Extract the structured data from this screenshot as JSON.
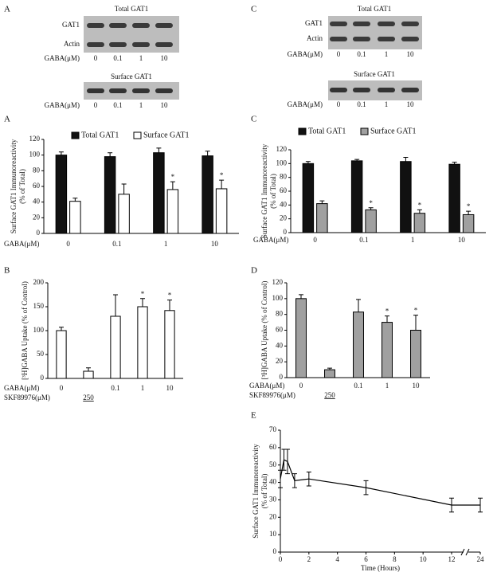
{
  "blots": [
    {
      "panel": "A",
      "total_title": "Total GAT1",
      "rows": [
        "GAT1",
        "Actin"
      ],
      "surface_title": "Surface GAT1",
      "dose_label": "GABA(μM)",
      "lanes": [
        "0",
        "0.1",
        "1",
        "10"
      ]
    },
    {
      "panel": "C",
      "total_title": "Total GAT1",
      "rows": [
        "GAT1",
        "Actin"
      ],
      "surface_title": "Surface GAT1",
      "dose_label": "GABA(μM)",
      "lanes": [
        "0",
        "0.1",
        "1",
        "10"
      ]
    }
  ],
  "chart_data": [
    {
      "type": "bar",
      "panel": "A",
      "ylabel": [
        "Surface GAT1 Immunoreactivity",
        "(% of Total)"
      ],
      "xlabel": "GABA(μM)",
      "categories": [
        "0",
        "0.1",
        "1",
        "10"
      ],
      "ylim": [
        0,
        120
      ],
      "yticks": [
        0,
        20,
        40,
        60,
        80,
        100,
        120
      ],
      "annotation": "*",
      "series": [
        {
          "name": "Total GAT1",
          "color": "#111111",
          "values": [
            100,
            98,
            103,
            99
          ],
          "errors": [
            4,
            5,
            6,
            6
          ],
          "significant": [
            false,
            false,
            false,
            false
          ]
        },
        {
          "name": "Surface GAT1",
          "color": "#ffffff",
          "values": [
            41,
            50,
            56,
            57
          ],
          "errors": [
            4,
            13,
            10,
            11
          ],
          "significant": [
            false,
            false,
            true,
            true
          ]
        }
      ]
    },
    {
      "type": "bar",
      "panel": "C",
      "ylabel": [
        "Surface GAT1 Immunoreactivity",
        "(% of Total)"
      ],
      "xlabel": "GABA(μM)",
      "categories": [
        "0",
        "0.1",
        "1",
        "10"
      ],
      "ylim": [
        0,
        120
      ],
      "yticks": [
        0,
        20,
        40,
        60,
        80,
        100,
        120
      ],
      "annotation": "*",
      "series": [
        {
          "name": "Total GAT1",
          "color": "#111111",
          "values": [
            100,
            104,
            103,
            99
          ],
          "errors": [
            3,
            2,
            6,
            3
          ],
          "significant": [
            false,
            false,
            false,
            false
          ]
        },
        {
          "name": "Surface GAT1",
          "color": "#a0a0a0",
          "values": [
            42,
            33,
            28,
            26
          ],
          "errors": [
            4,
            3,
            5,
            5
          ],
          "significant": [
            false,
            true,
            true,
            true
          ]
        }
      ]
    },
    {
      "type": "bar",
      "panel": "B",
      "ylabel": [
        "[³H]GABA Uptake (% of Control)"
      ],
      "xlabel": "GABA(μM)",
      "xlabel2": "SKF89976(μM)",
      "categories": [
        "0",
        null,
        "0.1",
        "1",
        "10"
      ],
      "categories2": [
        null,
        "250",
        null,
        null,
        null
      ],
      "ylim": [
        0,
        200
      ],
      "yticks": [
        0,
        50,
        100,
        150,
        200
      ],
      "annotation": "*",
      "series": [
        {
          "color": "#ffffff",
          "values": [
            100,
            15,
            130,
            150,
            142
          ],
          "errors": [
            7,
            7,
            45,
            17,
            22
          ],
          "significant": [
            false,
            false,
            false,
            true,
            true
          ]
        }
      ]
    },
    {
      "type": "bar",
      "panel": "D",
      "ylabel": [
        "[³H]GABA Uptake (% of Control)"
      ],
      "xlabel": "GABA(μM)",
      "xlabel2": "SKF89976(μM)",
      "categories": [
        "0",
        null,
        "0.1",
        "1",
        "10"
      ],
      "categories2": [
        null,
        "250",
        null,
        null,
        null
      ],
      "ylim": [
        0,
        120
      ],
      "yticks": [
        0,
        20,
        40,
        60,
        80,
        100,
        120
      ],
      "annotation": "*",
      "series": [
        {
          "color": "#a0a0a0",
          "values": [
            100,
            10,
            83,
            70,
            60
          ],
          "errors": [
            5,
            2,
            16,
            8,
            19
          ],
          "significant": [
            false,
            false,
            false,
            true,
            true
          ]
        }
      ]
    },
    {
      "type": "line",
      "panel": "E",
      "ylabel": [
        "Surface GAT1 Immunoreactivity",
        "(% of Total)"
      ],
      "xlabel": "Time (Hours)",
      "x": [
        0,
        0.25,
        0.5,
        1,
        2,
        6,
        12,
        24
      ],
      "xlim": [
        0,
        24
      ],
      "xticks": [
        0,
        2,
        4,
        6,
        8,
        10,
        12,
        24
      ],
      "axis_break": true,
      "ylim": [
        0,
        70
      ],
      "yticks": [
        0,
        10,
        20,
        30,
        40,
        50,
        60,
        70
      ],
      "series": [
        {
          "color": "#000000",
          "values": [
            42,
            53,
            52,
            41,
            42,
            37,
            27,
            27
          ],
          "errors": [
            5,
            6,
            7,
            4,
            4,
            4,
            4,
            4
          ]
        }
      ]
    }
  ]
}
